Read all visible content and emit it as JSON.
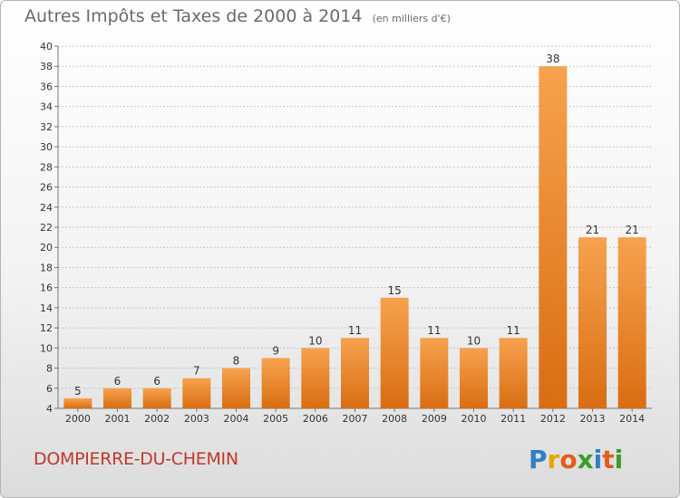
{
  "title": "Autres Impôts et Taxes de 2000 à 2014",
  "unit_note": "(en milliers d'€)",
  "commune": "DOMPIERRE-DU-CHEMIN",
  "brand": "Proxiti",
  "colors": {
    "bar_light": "#f7a24e",
    "bar_dark": "#d96d12",
    "title": "#6a6a6a",
    "commune": "#c0392b",
    "grid": "#c8c8c8"
  },
  "chart_data": {
    "type": "bar",
    "categories": [
      "2000",
      "2001",
      "2002",
      "2003",
      "2004",
      "2005",
      "2006",
      "2007",
      "2008",
      "2009",
      "2010",
      "2011",
      "2012",
      "2013",
      "2014"
    ],
    "values": [
      5,
      6,
      6,
      7,
      8,
      9,
      10,
      11,
      15,
      11,
      10,
      11,
      38,
      21,
      21
    ],
    "ylim": [
      4,
      40
    ],
    "yticks": [
      4,
      6,
      8,
      10,
      12,
      14,
      16,
      18,
      20,
      22,
      24,
      26,
      28,
      30,
      32,
      34,
      36,
      38,
      40
    ],
    "grid": true,
    "legend": "none"
  }
}
